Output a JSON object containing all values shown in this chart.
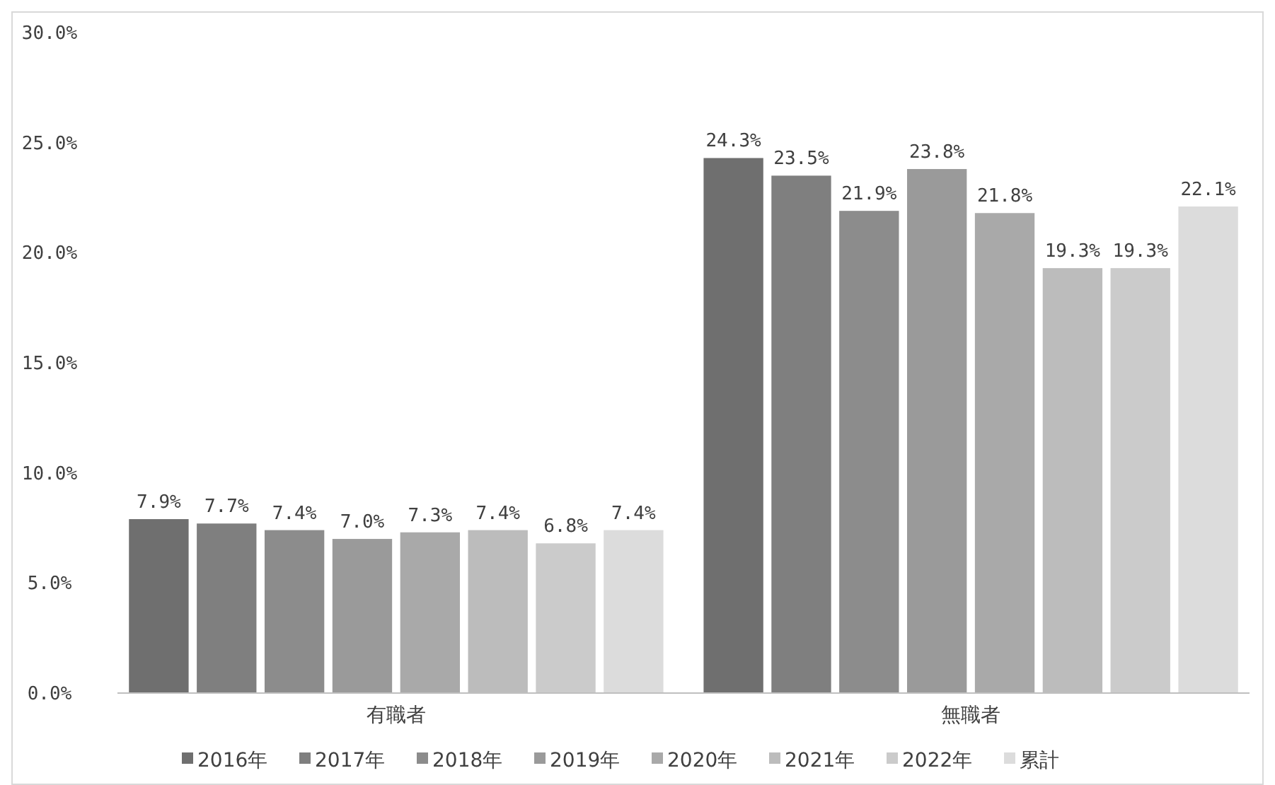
{
  "chart_data": {
    "type": "bar",
    "categories": [
      "有職者",
      "無職者"
    ],
    "series": [
      {
        "name": "2016年",
        "color": "#6f6f6f",
        "values": [
          7.9,
          24.3
        ],
        "value_labels": [
          "7.9%",
          "24.3%"
        ]
      },
      {
        "name": "2017年",
        "color": "#7f7f7f",
        "values": [
          7.7,
          23.5
        ],
        "value_labels": [
          "7.7%",
          "23.5%"
        ]
      },
      {
        "name": "2018年",
        "color": "#8c8c8c",
        "values": [
          7.4,
          21.9
        ],
        "value_labels": [
          "7.4%",
          "21.9%"
        ]
      },
      {
        "name": "2019年",
        "color": "#9a9a9a",
        "values": [
          7.0,
          23.8
        ],
        "value_labels": [
          "7.0%",
          "23.8%"
        ]
      },
      {
        "name": "2020年",
        "color": "#a9a9a9",
        "values": [
          7.3,
          21.8
        ],
        "value_labels": [
          "7.3%",
          "21.8%"
        ]
      },
      {
        "name": "2021年",
        "color": "#bcbcbc",
        "values": [
          7.4,
          19.3
        ],
        "value_labels": [
          "7.4%",
          "19.3%"
        ]
      },
      {
        "name": "2022年",
        "color": "#cbcbcb",
        "values": [
          6.8,
          19.3
        ],
        "value_labels": [
          "6.8%",
          "19.3%"
        ]
      },
      {
        "name": "累計",
        "color": "#dcdcdc",
        "values": [
          7.4,
          22.1
        ],
        "value_labels": [
          "7.4%",
          "22.1%"
        ]
      }
    ],
    "ylim": [
      0,
      30
    ],
    "yticks": [
      {
        "value": 0,
        "label": "0.0%"
      },
      {
        "value": 5,
        "label": "5.0%"
      },
      {
        "value": 10,
        "label": "10.0%"
      },
      {
        "value": 15,
        "label": "15.0%"
      },
      {
        "value": 20,
        "label": "20.0%"
      },
      {
        "value": 25,
        "label": "25.0%"
      },
      {
        "value": 30,
        "label": "30.0%"
      }
    ],
    "grid": false,
    "legend": "bottom"
  }
}
